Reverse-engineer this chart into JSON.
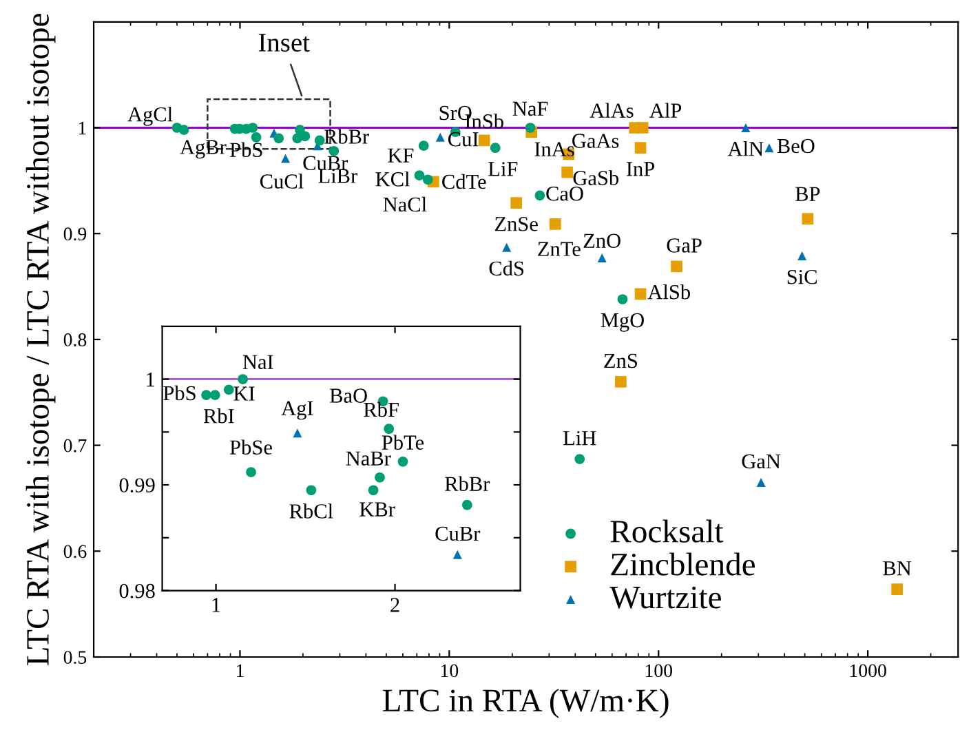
{
  "chart_data": [
    {
      "type": "scatter",
      "xlabel": "LTC in RTA (W/m·K)",
      "ylabel": "LTC RTA with isotope / LTC RTA without isotope",
      "log": "x",
      "xlim": [
        0.2,
        2700
      ],
      "xticks": [
        1,
        10,
        100,
        1000
      ],
      "ylim": [
        0.5,
        1.1
      ],
      "yticks": [
        0.5,
        0.6,
        0.7,
        0.8,
        0.9,
        1
      ],
      "grid": false,
      "legend": "bottom right",
      "series": [
        {
          "name": "Rocksalt",
          "color": "#009e73",
          "marker": "circle",
          "x": [
            0.5,
            0.54,
            2.81,
            7.55,
            10.7,
            7.2,
            7.9,
            16.6,
            24.4,
            27.1,
            67.3,
            42,
            0.946,
            0.995,
            1.072,
            1.15,
            1.196,
            1.532,
            1.933,
            2.044,
            1.879,
            2.403
          ],
          "values": [
            1.0,
            0.998,
            0.978,
            0.983,
            0.996,
            0.955,
            0.951,
            0.981,
            1.0,
            0.936,
            0.838,
            0.687,
            0.999,
            0.999,
            0.999,
            1.0,
            0.991,
            0.99,
            0.998,
            0.992,
            0.99,
            0.988
          ]
        },
        {
          "name": "Zincblende",
          "color": "#e69f00",
          "marker": "square",
          "x": [
            8.4,
            14.7,
            24.7,
            37.2,
            36.6,
            20.9,
            32.1,
            77,
            84,
            82,
            516,
            122,
            82,
            66,
            1380
          ],
          "values": [
            0.949,
            0.988,
            0.996,
            0.975,
            0.958,
            0.929,
            0.909,
            1.0,
            1.0,
            0.981,
            0.914,
            0.869,
            0.843,
            0.76,
            0.564
          ]
        },
        {
          "name": "Wurtzite",
          "color": "#0072b2",
          "marker": "triangle",
          "x": [
            1.65,
            9.06,
            18.8,
            53.7,
            261,
            338,
            485,
            309,
            1.455,
            2.349
          ],
          "values": [
            0.971,
            0.991,
            0.887,
            0.877,
            1.0,
            0.981,
            0.879,
            0.665,
            0.995,
            0.983
          ]
        }
      ],
      "ref_lines": [
        {
          "axis": "y",
          "value": 1,
          "color": "#9400d3"
        }
      ],
      "annotations": [
        {
          "text": "AgCl",
          "x": 0.5,
          "y": 1.0
        },
        {
          "text": "AgBr",
          "x": 0.54,
          "y": 0.998
        },
        {
          "text": "PbS",
          "x": 0.946,
          "y": 0.999
        },
        {
          "text": "CuCl",
          "x": 1.65,
          "y": 0.971
        },
        {
          "text": "LiBr",
          "x": 2.81,
          "y": 0.978
        },
        {
          "text": "RbBr",
          "x": 2.403,
          "y": 0.988
        },
        {
          "text": "CuBr",
          "x": 2.349,
          "y": 0.983
        },
        {
          "text": "KF",
          "x": 7.55,
          "y": 0.983
        },
        {
          "text": "CuI",
          "x": 9.06,
          "y": 0.991
        },
        {
          "text": "SrO",
          "x": 10.7,
          "y": 0.996
        },
        {
          "text": "KCl",
          "x": 7.2,
          "y": 0.955
        },
        {
          "text": "NaCl",
          "x": 7.9,
          "y": 0.951
        },
        {
          "text": "CdTe",
          "x": 8.4,
          "y": 0.949
        },
        {
          "text": "InSb",
          "x": 14.7,
          "y": 0.988
        },
        {
          "text": "LiF",
          "x": 16.6,
          "y": 0.981
        },
        {
          "text": "NaF",
          "x": 24.4,
          "y": 1.0
        },
        {
          "text": "InAs",
          "x": 24.7,
          "y": 0.996
        },
        {
          "text": "GaAs",
          "x": 37.2,
          "y": 0.975
        },
        {
          "text": "GaSb",
          "x": 36.6,
          "y": 0.958
        },
        {
          "text": "CaO",
          "x": 27.1,
          "y": 0.936
        },
        {
          "text": "ZnSe",
          "x": 20.9,
          "y": 0.929
        },
        {
          "text": "ZnTe",
          "x": 32.1,
          "y": 0.909
        },
        {
          "text": "CdS",
          "x": 18.8,
          "y": 0.887
        },
        {
          "text": "ZnO",
          "x": 53.7,
          "y": 0.877
        },
        {
          "text": "AlAs",
          "x": 77,
          "y": 1.0
        },
        {
          "text": "AlP",
          "x": 84,
          "y": 1.0
        },
        {
          "text": "InP",
          "x": 82,
          "y": 0.981
        },
        {
          "text": "AlN",
          "x": 261,
          "y": 1.0
        },
        {
          "text": "BeO",
          "x": 338,
          "y": 0.981
        },
        {
          "text": "BP",
          "x": 516,
          "y": 0.914
        },
        {
          "text": "SiC",
          "x": 485,
          "y": 0.879
        },
        {
          "text": "GaP",
          "x": 122,
          "y": 0.869
        },
        {
          "text": "AlSb",
          "x": 82,
          "y": 0.843
        },
        {
          "text": "MgO",
          "x": 67.3,
          "y": 0.838
        },
        {
          "text": "ZnS",
          "x": 66,
          "y": 0.76
        },
        {
          "text": "LiH",
          "x": 42,
          "y": 0.687
        },
        {
          "text": "GaN",
          "x": 309,
          "y": 0.665
        },
        {
          "text": "BN",
          "x": 1380,
          "y": 0.564
        },
        {
          "text": "Inset",
          "x": 2.0,
          "y": 1.005
        }
      ]
    },
    {
      "type": "scatter",
      "xlim": [
        0.7,
        2.7
      ],
      "xticks": [
        1,
        2
      ],
      "ylim": [
        0.98,
        1.005
      ],
      "yticks": [
        0.98,
        {
          "value": 0.985,
          "label": null
        },
        0.99,
        {
          "value": 0.995,
          "label": null
        },
        1
      ],
      "grid": false,
      "legend": false,
      "series": [
        {
          "color": "#009e73",
          "marker": "circle",
          "x": [
            0.946,
            0.995,
            1.072,
            1.15,
            1.196,
            1.532,
            1.933,
            1.966,
            2.044,
            1.915,
            1.879,
            2.403
          ],
          "values": [
            0.9985,
            0.9985,
            0.999,
            1.0,
            0.9912,
            0.9895,
            0.9979,
            0.9953,
            0.9922,
            0.9907,
            0.9895,
            0.9881
          ]
        },
        {
          "color": "#0072b2",
          "marker": "triangle",
          "x": [
            1.455,
            2.349
          ],
          "values": [
            0.9949,
            0.9834
          ]
        }
      ],
      "ref_lines": [
        {
          "axis": "y",
          "value": 1,
          "color": "#b05ee0"
        }
      ],
      "annotations": [
        {
          "text": "PbS",
          "x": 0.946,
          "y": 0.9985
        },
        {
          "text": "RbI",
          "x": 0.995,
          "y": 0.9985
        },
        {
          "text": "KI",
          "x": 1.072,
          "y": 0.999
        },
        {
          "text": "NaI",
          "x": 1.15,
          "y": 1.0
        },
        {
          "text": "AgI",
          "x": 1.455,
          "y": 0.9949
        },
        {
          "text": "PbSe",
          "x": 1.196,
          "y": 0.9912
        },
        {
          "text": "RbCl",
          "x": 1.532,
          "y": 0.9895
        },
        {
          "text": "BaO",
          "x": 1.933,
          "y": 0.9979
        },
        {
          "text": "RbF",
          "x": 1.966,
          "y": 0.9953
        },
        {
          "text": "PbTe",
          "x": 2.044,
          "y": 0.9922
        },
        {
          "text": "NaBr",
          "x": 1.915,
          "y": 0.9907
        },
        {
          "text": "KBr",
          "x": 1.879,
          "y": 0.9895
        },
        {
          "text": "RbBr",
          "x": 2.403,
          "y": 0.9881
        },
        {
          "text": "CuBr",
          "x": 2.349,
          "y": 0.9834
        }
      ]
    }
  ]
}
